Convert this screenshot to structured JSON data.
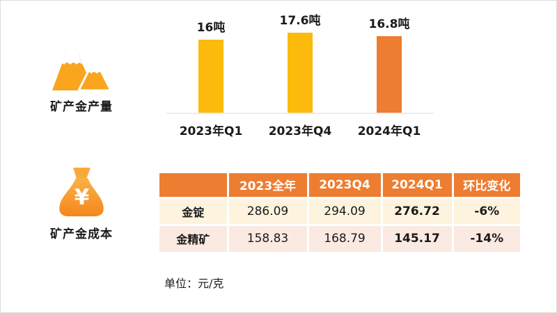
{
  "page": {
    "background": "#ffffff",
    "border_color": "#dcdcdc"
  },
  "production": {
    "icon": "mountains-icon",
    "label": "矿产金产量"
  },
  "chart_data": {
    "type": "bar",
    "title": "矿产金产量",
    "categories": [
      "2023年Q1",
      "2023年Q4",
      "2024年Q1"
    ],
    "values": [
      16,
      17.6,
      16.8
    ],
    "value_labels": [
      "16吨",
      "17.6吨",
      "16.8吨"
    ],
    "unit": "吨",
    "ylim": [
      0,
      17.6
    ],
    "bar_colors": [
      "#FBBA0C",
      "#FBBA0C",
      "#ED7D31"
    ],
    "axis_line_color": "#ececec",
    "grid": false,
    "legend_position": "none"
  },
  "cost": {
    "icon": "money-bag-icon",
    "label": "矿产金成本",
    "table": {
      "columns": [
        "",
        "2023全年",
        "2023Q4",
        "2024Q1",
        "环比变化"
      ],
      "rows": [
        {
          "label": "金锭",
          "values": [
            "286.09",
            "294.09",
            "276.72",
            "-6%"
          ]
        },
        {
          "label": "金精矿",
          "values": [
            "158.83",
            "168.79",
            "145.17",
            "-14%"
          ]
        }
      ],
      "header_bg": "#ED7D31",
      "row_colors": [
        "#FDF3DF",
        "#FAEAE2"
      ],
      "emphasized_columns": [
        "2024Q1",
        "环比变化"
      ]
    },
    "unit_note": "单位：元/克"
  },
  "colors": {
    "gold": "#FBBA0C",
    "orange": "#ED7D31",
    "icon_gold": "#F9A51E",
    "bag_gradient_top": "#FBB145",
    "bag_gradient_bottom": "#F5861C",
    "text": "#1a1a1a"
  }
}
